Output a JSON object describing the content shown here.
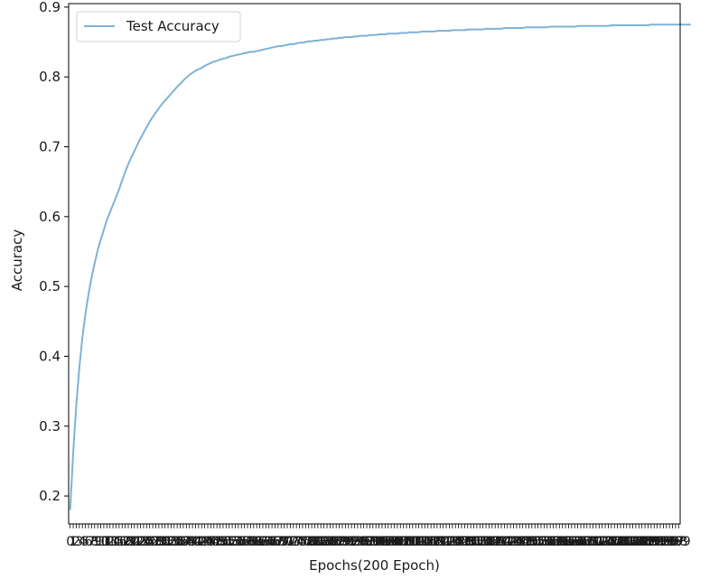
{
  "chart_data": {
    "type": "line",
    "title": "",
    "xlabel": "Epochs(200 Epoch)",
    "ylabel": "Accuracy",
    "ylim": [
      0.16,
      0.905
    ],
    "xlim": [
      -0.5,
      199.5
    ],
    "yticks": [
      0.2,
      0.3,
      0.4,
      0.5,
      0.6,
      0.7,
      0.8,
      0.9
    ],
    "ytick_labels": [
      "0.2",
      "0.3",
      "0.4",
      "0.5",
      "0.6",
      "0.7",
      "0.8",
      "0.9"
    ],
    "x_ticks": {
      "start": 0,
      "end": 199,
      "step": 1
    },
    "x_last_tick_label": "199",
    "grid": false,
    "legend": {
      "placement": "upper left",
      "entries": [
        "Test Accuracy"
      ]
    },
    "series": [
      {
        "name": "Test Accuracy",
        "color": "#7fb2d6",
        "x_start": 0,
        "values": [
          0.18,
          0.263,
          0.33,
          0.384,
          0.427,
          0.461,
          0.489,
          0.513,
          0.533,
          0.552,
          0.567,
          0.581,
          0.595,
          0.606,
          0.617,
          0.628,
          0.639,
          0.652,
          0.664,
          0.675,
          0.685,
          0.694,
          0.703,
          0.712,
          0.72,
          0.728,
          0.736,
          0.743,
          0.749,
          0.755,
          0.761,
          0.766,
          0.771,
          0.776,
          0.781,
          0.786,
          0.79,
          0.795,
          0.799,
          0.803,
          0.806,
          0.809,
          0.811,
          0.813,
          0.816,
          0.818,
          0.82,
          0.822,
          0.823,
          0.825,
          0.826,
          0.827,
          0.829,
          0.83,
          0.831,
          0.832,
          0.833,
          0.834,
          0.835,
          0.836,
          0.836,
          0.837,
          0.838,
          0.839,
          0.84,
          0.841,
          0.842,
          0.843,
          0.844,
          0.844,
          0.845,
          0.846,
          0.847,
          0.847,
          0.848,
          0.849,
          0.849,
          0.85,
          0.851,
          0.851,
          0.852,
          0.852,
          0.853,
          0.853,
          0.854,
          0.854,
          0.855,
          0.855,
          0.856,
          0.856,
          0.857,
          0.857,
          0.857,
          0.858,
          0.858,
          0.859,
          0.859,
          0.859,
          0.86,
          0.86,
          0.86,
          0.861,
          0.861,
          0.861,
          0.862,
          0.862,
          0.862,
          0.862,
          0.863,
          0.863,
          0.863,
          0.864,
          0.864,
          0.864,
          0.864,
          0.865,
          0.865,
          0.865,
          0.865,
          0.865,
          0.866,
          0.866,
          0.866,
          0.866,
          0.866,
          0.867,
          0.867,
          0.867,
          0.867,
          0.867,
          0.868,
          0.868,
          0.868,
          0.868,
          0.868,
          0.868,
          0.869,
          0.869,
          0.869,
          0.869,
          0.869,
          0.869,
          0.87,
          0.87,
          0.87,
          0.87,
          0.87,
          0.87,
          0.87,
          0.871,
          0.871,
          0.871,
          0.871,
          0.871,
          0.871,
          0.871,
          0.871,
          0.872,
          0.872,
          0.872,
          0.872,
          0.872,
          0.872,
          0.872,
          0.872,
          0.872,
          0.873,
          0.873,
          0.873,
          0.873,
          0.873,
          0.873,
          0.873,
          0.873,
          0.873,
          0.873,
          0.873,
          0.874,
          0.874,
          0.874,
          0.874,
          0.874,
          0.874,
          0.874,
          0.874,
          0.874,
          0.874,
          0.874,
          0.874,
          0.874,
          0.875,
          0.875,
          0.875,
          0.875,
          0.875,
          0.875,
          0.875,
          0.875,
          0.875,
          0.875,
          0.875,
          0.875,
          0.875,
          0.875
        ]
      }
    ]
  }
}
